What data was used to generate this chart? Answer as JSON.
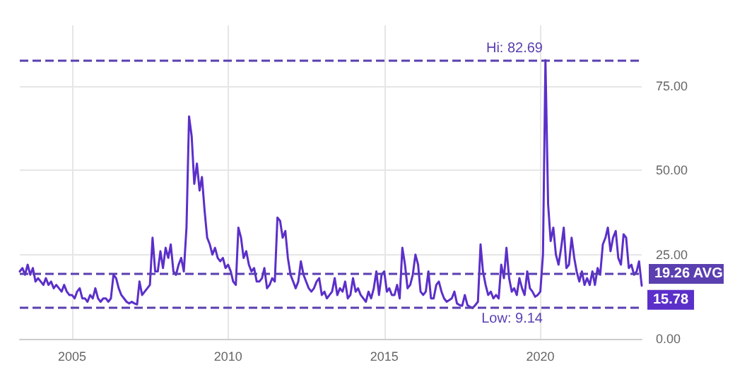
{
  "chart_data": {
    "type": "line",
    "x": [
      "2003-05",
      "2003-06",
      "2003-07",
      "2003-08",
      "2003-09",
      "2003-10",
      "2003-11",
      "2003-12",
      "2004-01",
      "2004-02",
      "2004-03",
      "2004-04",
      "2004-05",
      "2004-06",
      "2004-07",
      "2004-08",
      "2004-09",
      "2004-10",
      "2004-11",
      "2004-12",
      "2005-01",
      "2005-02",
      "2005-03",
      "2005-04",
      "2005-05",
      "2005-06",
      "2005-07",
      "2005-08",
      "2005-09",
      "2005-10",
      "2005-11",
      "2005-12",
      "2006-01",
      "2006-02",
      "2006-03",
      "2006-04",
      "2006-05",
      "2006-06",
      "2006-07",
      "2006-08",
      "2006-09",
      "2006-10",
      "2006-11",
      "2006-12",
      "2007-01",
      "2007-02",
      "2007-03",
      "2007-04",
      "2007-05",
      "2007-06",
      "2007-07",
      "2007-08",
      "2007-09",
      "2007-10",
      "2007-11",
      "2007-12",
      "2008-01",
      "2008-02",
      "2008-03",
      "2008-04",
      "2008-05",
      "2008-06",
      "2008-07",
      "2008-08",
      "2008-09",
      "2008-10",
      "2008-11",
      "2008-12",
      "2009-01",
      "2009-02",
      "2009-03",
      "2009-04",
      "2009-05",
      "2009-06",
      "2009-07",
      "2009-08",
      "2009-09",
      "2009-10",
      "2009-11",
      "2009-12",
      "2010-01",
      "2010-02",
      "2010-03",
      "2010-04",
      "2010-05",
      "2010-06",
      "2010-07",
      "2010-08",
      "2010-09",
      "2010-10",
      "2010-11",
      "2010-12",
      "2011-01",
      "2011-02",
      "2011-03",
      "2011-04",
      "2011-05",
      "2011-06",
      "2011-07",
      "2011-08",
      "2011-09",
      "2011-10",
      "2011-11",
      "2011-12",
      "2012-01",
      "2012-02",
      "2012-03",
      "2012-04",
      "2012-05",
      "2012-06",
      "2012-07",
      "2012-08",
      "2012-09",
      "2012-10",
      "2012-11",
      "2012-12",
      "2013-01",
      "2013-02",
      "2013-03",
      "2013-04",
      "2013-05",
      "2013-06",
      "2013-07",
      "2013-08",
      "2013-09",
      "2013-10",
      "2013-11",
      "2013-12",
      "2014-01",
      "2014-02",
      "2014-03",
      "2014-04",
      "2014-05",
      "2014-06",
      "2014-07",
      "2014-08",
      "2014-09",
      "2014-10",
      "2014-11",
      "2014-12",
      "2015-01",
      "2015-02",
      "2015-03",
      "2015-04",
      "2015-05",
      "2015-06",
      "2015-07",
      "2015-08",
      "2015-09",
      "2015-10",
      "2015-11",
      "2015-12",
      "2016-01",
      "2016-02",
      "2016-03",
      "2016-04",
      "2016-05",
      "2016-06",
      "2016-07",
      "2016-08",
      "2016-09",
      "2016-10",
      "2016-11",
      "2016-12",
      "2017-01",
      "2017-02",
      "2017-03",
      "2017-04",
      "2017-05",
      "2017-06",
      "2017-07",
      "2017-08",
      "2017-09",
      "2017-10",
      "2017-11",
      "2017-12",
      "2018-01",
      "2018-02",
      "2018-03",
      "2018-04",
      "2018-05",
      "2018-06",
      "2018-07",
      "2018-08",
      "2018-09",
      "2018-10",
      "2018-11",
      "2018-12",
      "2019-01",
      "2019-02",
      "2019-03",
      "2019-04",
      "2019-05",
      "2019-06",
      "2019-07",
      "2019-08",
      "2019-09",
      "2019-10",
      "2019-11",
      "2019-12",
      "2020-01",
      "2020-02",
      "2020-03",
      "2020-04",
      "2020-05",
      "2020-06",
      "2020-07",
      "2020-08",
      "2020-09",
      "2020-10",
      "2020-11",
      "2020-12",
      "2021-01",
      "2021-02",
      "2021-03",
      "2021-04",
      "2021-05",
      "2021-06",
      "2021-07",
      "2021-08",
      "2021-09",
      "2021-10",
      "2021-11",
      "2021-12",
      "2022-01",
      "2022-02",
      "2022-03",
      "2022-04",
      "2022-05",
      "2022-06",
      "2022-07",
      "2022-08",
      "2022-09",
      "2022-10",
      "2022-11",
      "2022-12",
      "2023-01",
      "2023-02",
      "2023-03",
      "2023-04"
    ],
    "series": [
      {
        "color": "#5b2fc9",
        "values": [
          20,
          21,
          19,
          22,
          19,
          21,
          17,
          18,
          17,
          16,
          18,
          16,
          17,
          15,
          16,
          15,
          14,
          16,
          14,
          13,
          13,
          12,
          14,
          15,
          12,
          12,
          11,
          13,
          12,
          15,
          12,
          11,
          12,
          12,
          11,
          12,
          19,
          18,
          15,
          13,
          12,
          11,
          10.5,
          11,
          10.5,
          10.2,
          17,
          13,
          14,
          15,
          16,
          30,
          20,
          20,
          26,
          21,
          27,
          24,
          28,
          20,
          19,
          22,
          24,
          20,
          33,
          66,
          60,
          46,
          52,
          44,
          48,
          38,
          30,
          28,
          25,
          27,
          24,
          23,
          24,
          21,
          22,
          20,
          17,
          16,
          33,
          30,
          24,
          26,
          22,
          20,
          21,
          17,
          17,
          18,
          21,
          15,
          16,
          18,
          17,
          36,
          35,
          30,
          32,
          24,
          19,
          17,
          15,
          17,
          23,
          19,
          17,
          15,
          14,
          15,
          17,
          18,
          13,
          14,
          12,
          13,
          14,
          18,
          13,
          15,
          14,
          17,
          12,
          13,
          18,
          14,
          15,
          13,
          12,
          11,
          14,
          12,
          15,
          20,
          13,
          19,
          20,
          14,
          15,
          13,
          13,
          16,
          12,
          27,
          22,
          15,
          16,
          19,
          25,
          22,
          14,
          13,
          14,
          20,
          12,
          12,
          16,
          17,
          14,
          12,
          11,
          11.5,
          12,
          14,
          10.5,
          10,
          9.8,
          13,
          10,
          9.5,
          9.14,
          10,
          11,
          28,
          20,
          16,
          13,
          14,
          12,
          13,
          12,
          22,
          18,
          27,
          18,
          14,
          15,
          13,
          18,
          15,
          13,
          20,
          15,
          14,
          12.5,
          13,
          14,
          25,
          82.69,
          40,
          29,
          33,
          25,
          22,
          27,
          33,
          21,
          22,
          30,
          24,
          20,
          17,
          20,
          16,
          18,
          16,
          20,
          16,
          21,
          19,
          28,
          30,
          33,
          26,
          30,
          32,
          24,
          22,
          31,
          30,
          21,
          22,
          19,
          20,
          23,
          15.78
        ]
      }
    ],
    "xlim": [
      "2003-05",
      "2023-04"
    ],
    "xticks": [
      {
        "value": "2005",
        "label": "2005"
      },
      {
        "value": "2010",
        "label": "2010"
      },
      {
        "value": "2015",
        "label": "2015"
      },
      {
        "value": "2020",
        "label": "2020"
      }
    ],
    "ylim": [
      0,
      93
    ],
    "yticks": [
      {
        "value": 0,
        "label": "0.00"
      },
      {
        "value": 25,
        "label": "25.00"
      },
      {
        "value": 50,
        "label": "50.00"
      },
      {
        "value": 75,
        "label": "75.00"
      }
    ],
    "grid": true,
    "line_style": "solid",
    "marker": "none",
    "ref_lines": [
      {
        "axis": "y",
        "value": 82.69,
        "label": "Hi: 82.69",
        "color": "#5a3fb0",
        "line_style": "dashed"
      },
      {
        "axis": "y",
        "value": 19.26,
        "label": "19.26 AVG",
        "color": "#5a3fb0",
        "line_style": "dashed"
      },
      {
        "axis": "y",
        "value": 9.14,
        "label": "Low: 9.14",
        "color": "#5a3fb0",
        "line_style": "dashed"
      }
    ],
    "annotations": [
      {
        "text": "15.78",
        "x": "2023-04",
        "y": 15.78
      }
    ]
  }
}
